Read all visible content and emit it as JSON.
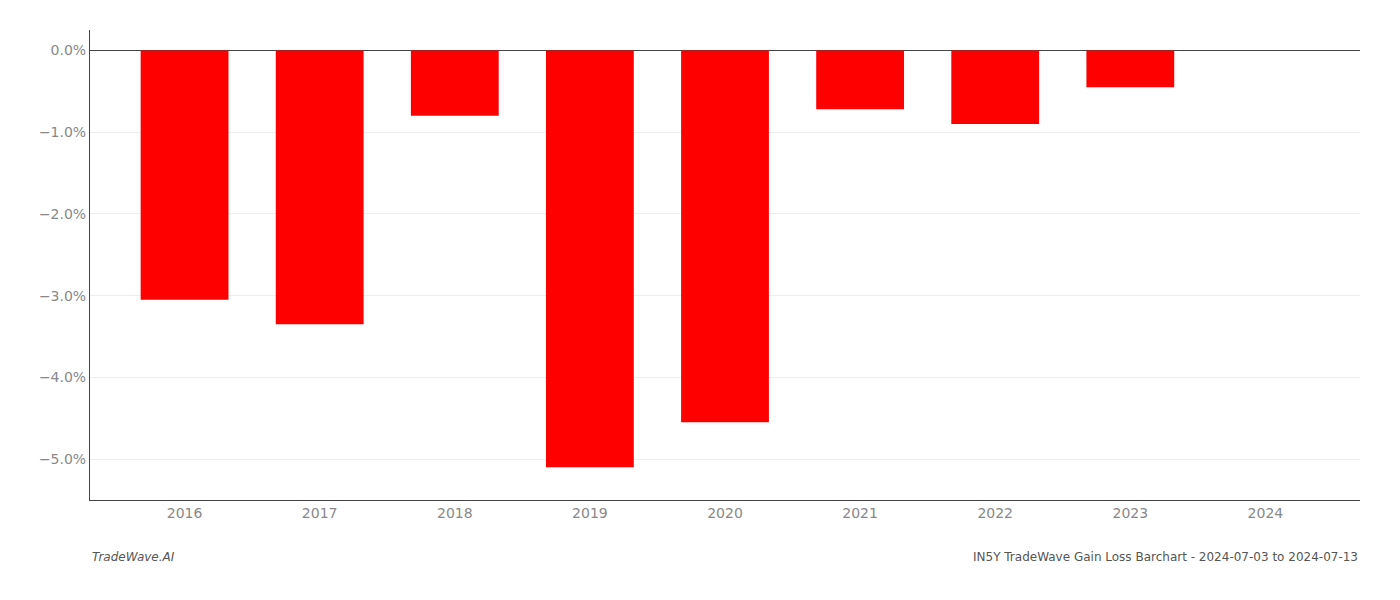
{
  "chart_data": {
    "type": "bar",
    "x": [
      2016,
      2017,
      2018,
      2019,
      2020,
      2021,
      2022,
      2023,
      2024
    ],
    "values": [
      -3.05,
      -3.35,
      -0.8,
      -5.1,
      -4.55,
      -0.72,
      -0.9,
      -0.45,
      0.0
    ],
    "color": "#ff0000",
    "xlim": [
      2015.3,
      2024.7
    ],
    "xticks": [
      2016,
      2017,
      2018,
      2019,
      2020,
      2021,
      2022,
      2023,
      2024
    ],
    "ylim": [
      -5.5,
      0.25
    ],
    "yticks": [
      {
        "value": 0.0,
        "label": "0.0%"
      },
      {
        "value": -1.0,
        "label": "−1.0%"
      },
      {
        "value": -2.0,
        "label": "−2.0%"
      },
      {
        "value": -3.0,
        "label": "−3.0%"
      },
      {
        "value": -4.0,
        "label": "−4.0%"
      },
      {
        "value": -5.0,
        "label": "−5.0%"
      }
    ],
    "grid": true,
    "annotations": [
      {
        "text": "TradeWave.AI"
      },
      {
        "text": "IN5Y TradeWave Gain Loss Barchart - 2024-07-03 to 2024-07-13"
      }
    ]
  }
}
